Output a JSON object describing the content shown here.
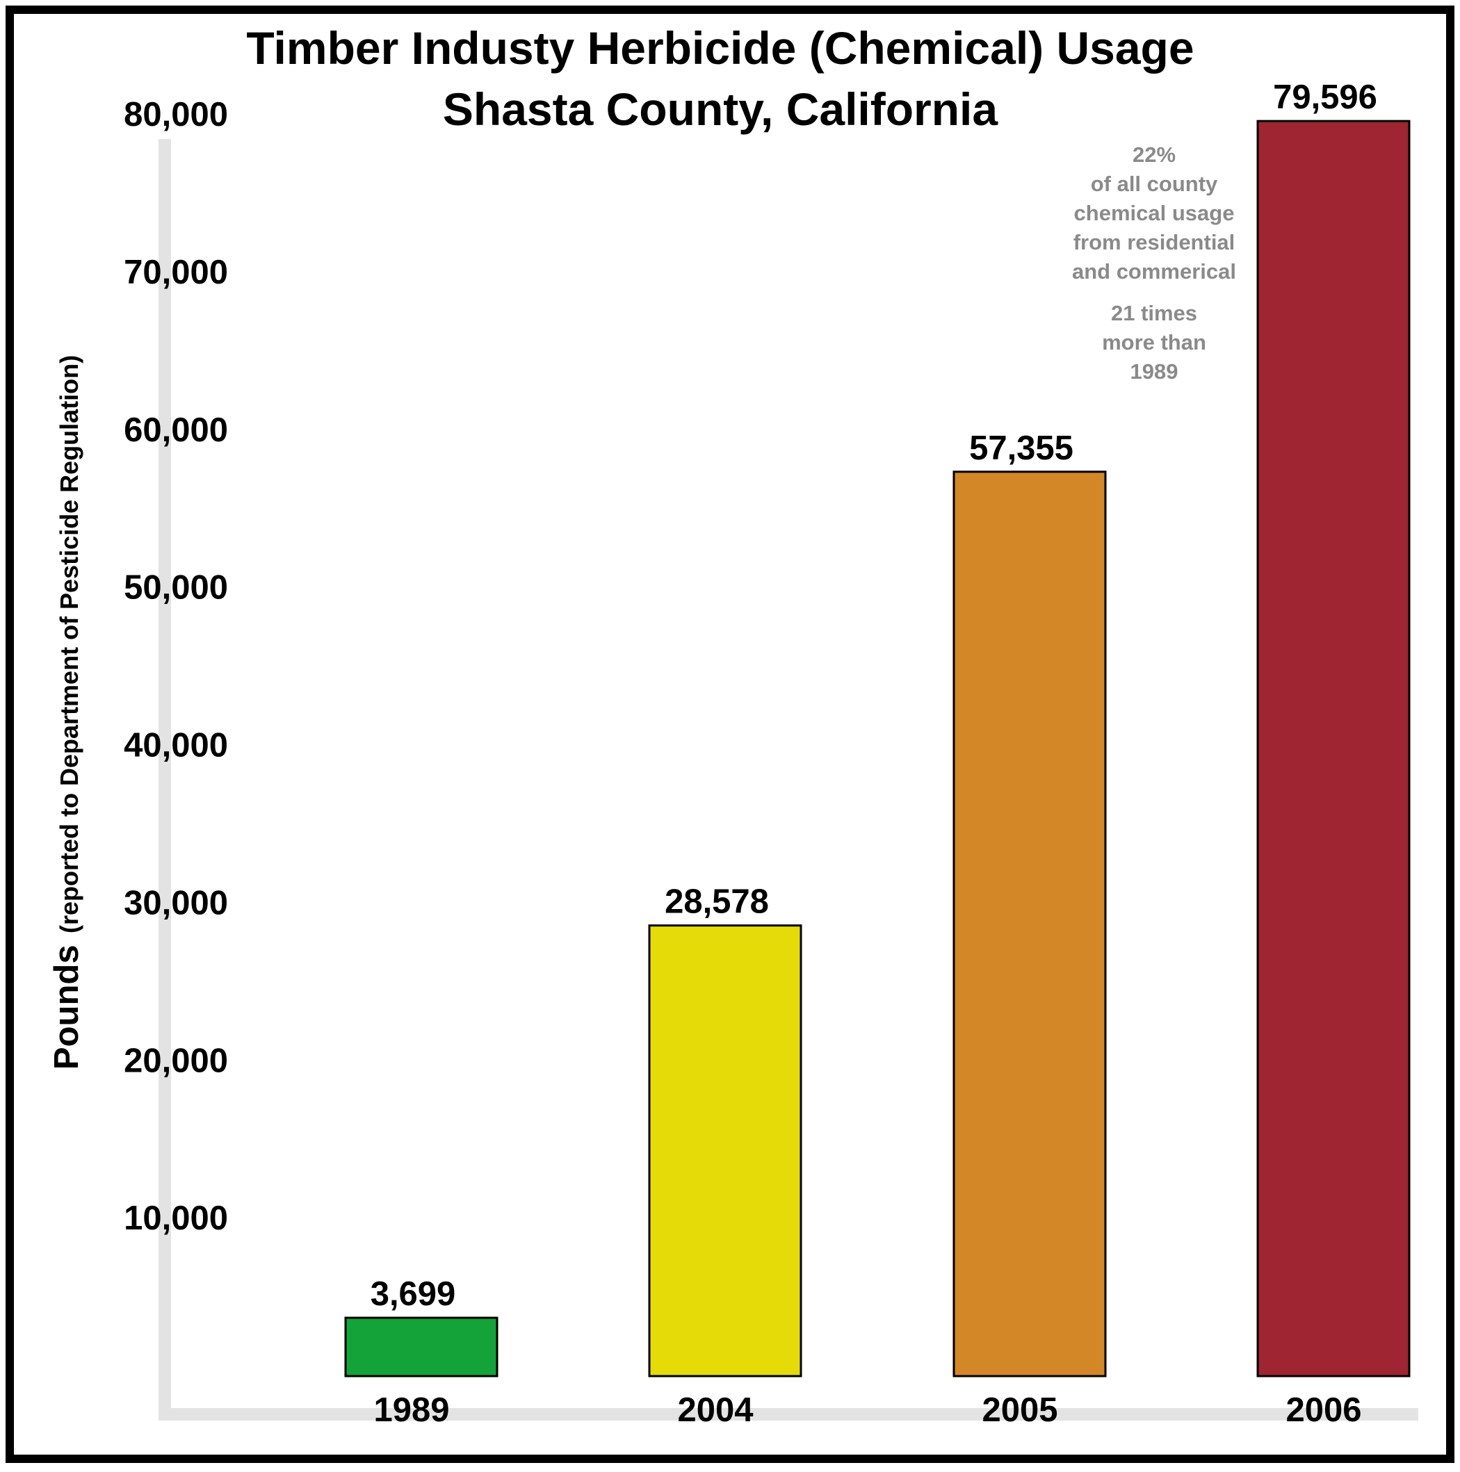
{
  "chart_data": {
    "type": "bar",
    "title": "Timber Industy Herbicide (Chemical) Usage",
    "subtitle": "Shasta County, California",
    "ylabel": "Pounds",
    "ylabel_detail": "(reported to Department of Pesticide Regulation)",
    "xlabel": "",
    "categories": [
      "1989",
      "2004",
      "2005",
      "2006"
    ],
    "values": [
      3699,
      28578,
      57355,
      79596
    ],
    "value_labels": [
      "3,699",
      "28,578",
      "57,355",
      "79,596"
    ],
    "colors": [
      "#13a339",
      "#e5db08",
      "#d48726",
      "#9e2531"
    ],
    "ylim": [
      0,
      80000
    ],
    "yticks": [
      10000,
      20000,
      30000,
      40000,
      50000,
      60000,
      70000,
      80000
    ],
    "ytick_labels": [
      "10,000",
      "20,000",
      "30,000",
      "40,000",
      "50,000",
      "60,000",
      "70,000",
      "80,000"
    ],
    "grid": false,
    "annotation": {
      "lines_a": [
        "22%",
        "of all county",
        "chemical usage",
        "from residential",
        "and commerical"
      ],
      "lines_b": [
        "21 times",
        "more than",
        "1989"
      ]
    }
  }
}
